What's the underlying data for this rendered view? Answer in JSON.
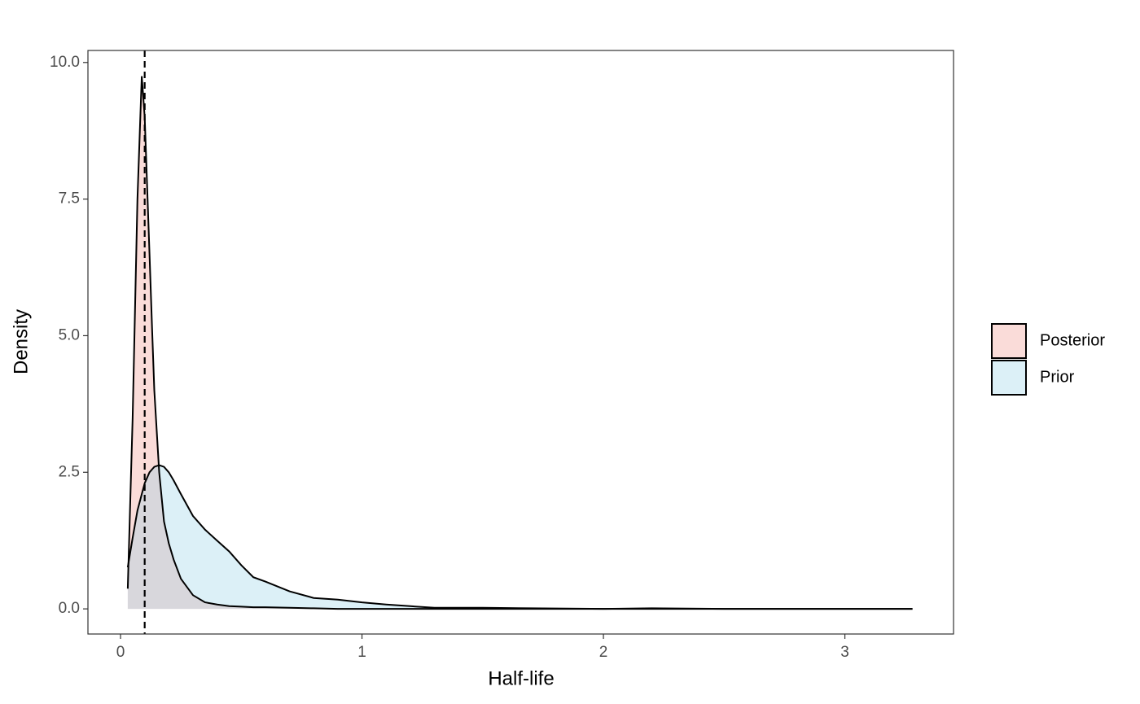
{
  "chart_data": {
    "type": "density",
    "x_label": "Half-life",
    "y_label": "Density",
    "x": [
      0.03,
      0.05,
      0.07,
      0.088,
      0.1,
      0.12,
      0.13,
      0.14,
      0.16,
      0.18,
      0.2,
      0.22,
      0.25,
      0.3,
      0.35,
      0.4,
      0.45,
      0.5,
      0.55,
      0.6,
      0.7,
      0.8,
      0.9,
      1.0,
      1.1,
      1.2,
      1.3,
      1.5,
      1.7,
      2.0,
      2.2,
      2.5,
      3.0,
      3.28
    ],
    "series": [
      {
        "name": "Posterior",
        "color": "#F08A80",
        "values": [
          0.37,
          3.5,
          7.5,
          9.75,
          9.0,
          6.5,
          5.2,
          4.0,
          2.5,
          1.6,
          1.2,
          0.9,
          0.55,
          0.25,
          0.12,
          0.08,
          0.05,
          0.04,
          0.03,
          0.03,
          0.02,
          0.01,
          0,
          0,
          0,
          0,
          0,
          0,
          0,
          0,
          0,
          0,
          0,
          0
        ]
      },
      {
        "name": "Prior",
        "color": "#8CCDE6",
        "values": [
          0.76,
          1.3,
          1.8,
          2.1,
          2.3,
          2.5,
          2.55,
          2.6,
          2.63,
          2.6,
          2.5,
          2.35,
          2.1,
          1.7,
          1.45,
          1.25,
          1.05,
          0.8,
          0.58,
          0.5,
          0.32,
          0.2,
          0.17,
          0.12,
          0.08,
          0.05,
          0.02,
          0.02,
          0.01,
          0,
          0.01,
          0,
          0,
          0
        ]
      }
    ],
    "vline": 0.1,
    "xlim": [
      -0.135,
      3.45
    ],
    "ylim": [
      -0.46,
      10.22
    ],
    "xticks": [
      0,
      1,
      2,
      3
    ],
    "yticks": [
      {
        "value": 0,
        "label": "0.0"
      },
      2.5,
      {
        "value": 5,
        "label": "5.0"
      },
      7.5,
      {
        "value": 10,
        "label": "10.0"
      }
    ],
    "legend_position": "right"
  }
}
